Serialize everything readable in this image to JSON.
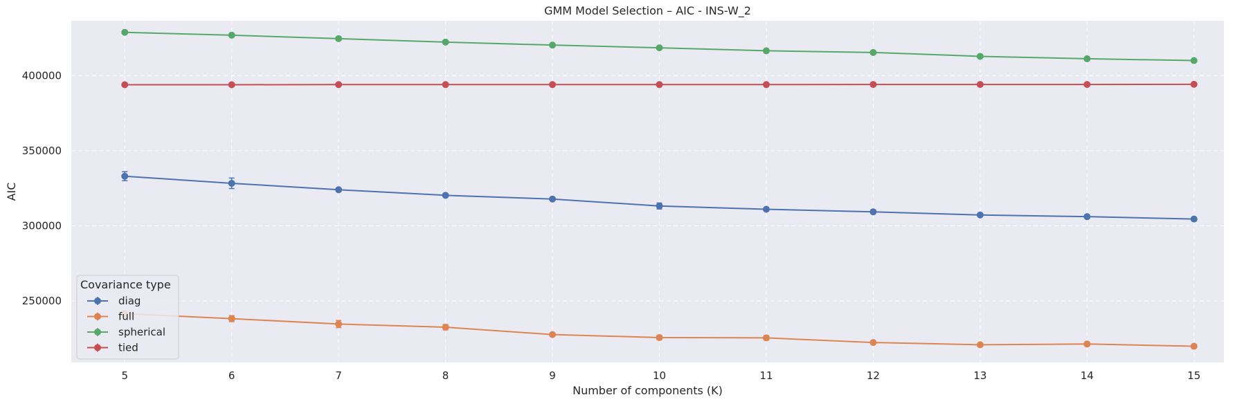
{
  "chart_data": {
    "type": "line",
    "title": "GMM Model Selection – AIC - INS-W_2",
    "xlabel": "Number of components (K)",
    "ylabel": "AIC",
    "x": [
      5,
      6,
      7,
      8,
      9,
      10,
      11,
      12,
      13,
      14,
      15
    ],
    "xticks": [
      "5",
      "6",
      "7",
      "8",
      "9",
      "10",
      "11",
      "12",
      "13",
      "14",
      "15"
    ],
    "yticks": [
      250000,
      300000,
      350000,
      400000
    ],
    "ytick_labels": [
      "250000",
      "300000",
      "350000",
      "400000"
    ],
    "xlim": [
      4.5,
      15.28
    ],
    "ylim": [
      209000,
      436500
    ],
    "grid": true,
    "grid_style": "dashed",
    "background": "#eaeaf2",
    "legend": {
      "title": "Covariance type",
      "position": "lower-left"
    },
    "series": [
      {
        "name": "diag",
        "color": "#4c72b0",
        "values": [
          333000,
          328300,
          324000,
          320300,
          317800,
          313200,
          311000,
          309300,
          307200,
          306100,
          304500
        ],
        "errors": [
          3000,
          3500,
          1200,
          1000,
          1000,
          2000,
          1000,
          1300,
          800,
          800,
          800
        ]
      },
      {
        "name": "full",
        "color": "#dd8452",
        "values": [
          241500,
          238200,
          234600,
          232500,
          227600,
          225600,
          225400,
          222300,
          220800,
          221300,
          219800
        ],
        "errors": [
          1500,
          2000,
          2400,
          1800,
          800,
          1500,
          1500,
          800,
          800,
          1300,
          800
        ]
      },
      {
        "name": "spherical",
        "color": "#55a868",
        "values": [
          428800,
          426900,
          424600,
          422300,
          420300,
          418500,
          416500,
          415400,
          412800,
          411200,
          410000
        ],
        "errors": [
          500,
          500,
          500,
          500,
          500,
          500,
          500,
          500,
          500,
          500,
          500
        ]
      },
      {
        "name": "tied",
        "color": "#c44e52",
        "values": [
          393900,
          393900,
          394000,
          394000,
          394000,
          394000,
          394000,
          394100,
          394100,
          394100,
          394200
        ],
        "errors": [
          200,
          200,
          200,
          200,
          200,
          200,
          200,
          200,
          200,
          200,
          200
        ]
      }
    ]
  }
}
